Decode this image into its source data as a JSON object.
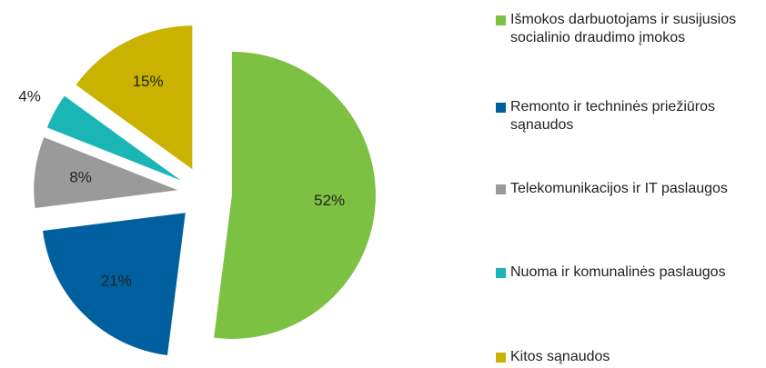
{
  "chart_data": {
    "type": "pie",
    "categories": [
      "Išmokos darbuotojams ir susijusios socialinio draudimo įmokos",
      "Remonto ir techninės priežiūros sąnaudos",
      "Telekomunikacijos ir IT paslaugos",
      "Nuoma ir komunalinės paslaugos",
      "Kitos sąnaudos"
    ],
    "values": [
      52,
      21,
      8,
      4,
      15
    ],
    "value_labels": [
      "52%",
      "21%",
      "8%",
      "4%",
      "15%"
    ],
    "colors": [
      "#7dc142",
      "#00609f",
      "#9a9a9a",
      "#1ab5b5",
      "#c9b200"
    ],
    "legend": "right"
  }
}
